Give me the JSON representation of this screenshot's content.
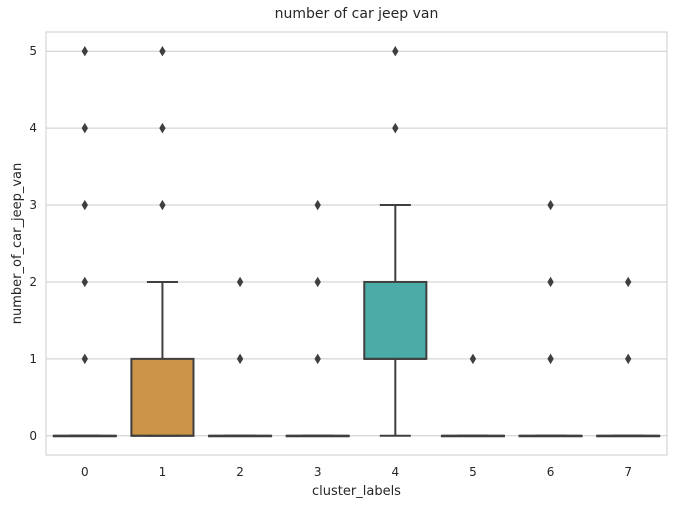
{
  "chart_data": {
    "type": "box",
    "title": "number of car jeep van",
    "xlabel": "cluster_labels",
    "ylabel": "number_of_car_jeep_van",
    "categories": [
      "0",
      "1",
      "2",
      "3",
      "4",
      "5",
      "6",
      "7"
    ],
    "ylim": [
      -0.25,
      5.25
    ],
    "yticks": [
      0,
      1,
      2,
      3,
      4,
      5
    ],
    "grid": "horizontal",
    "boxes": [
      {
        "category": "0",
        "whisker_low": 0,
        "q1": 0,
        "median": 0,
        "q3": 0,
        "whisker_high": 0,
        "outliers": [
          1,
          2,
          3,
          4,
          5
        ],
        "color": "#4c72b0"
      },
      {
        "category": "1",
        "whisker_low": 0,
        "q1": 0,
        "median": 0,
        "q3": 1,
        "whisker_high": 2,
        "outliers": [
          3,
          4,
          5
        ],
        "color": "#cc9447"
      },
      {
        "category": "2",
        "whisker_low": 0,
        "q1": 0,
        "median": 0,
        "q3": 0,
        "whisker_high": 0,
        "outliers": [
          1,
          2
        ],
        "color": "#5f9e6e"
      },
      {
        "category": "3",
        "whisker_low": 0,
        "q1": 0,
        "median": 0,
        "q3": 0,
        "whisker_high": 0,
        "outliers": [
          1,
          2,
          3
        ],
        "color": "#b55d60"
      },
      {
        "category": "4",
        "whisker_low": 0,
        "q1": 1,
        "median": 1,
        "q3": 2,
        "whisker_high": 3,
        "outliers": [
          4,
          5
        ],
        "color": "#4aaba7"
      },
      {
        "category": "5",
        "whisker_low": 0,
        "q1": 0,
        "median": 0,
        "q3": 0,
        "whisker_high": 0,
        "outliers": [
          1
        ],
        "color": "#857aab"
      },
      {
        "category": "6",
        "whisker_low": 0,
        "q1": 0,
        "median": 0,
        "q3": 0,
        "whisker_high": 0,
        "outliers": [
          1,
          2,
          3
        ],
        "color": "#8d7866"
      },
      {
        "category": "7",
        "whisker_low": 0,
        "q1": 0,
        "median": 0,
        "q3": 0,
        "whisker_high": 0,
        "outliers": [
          1,
          2
        ],
        "color": "#d095bf"
      }
    ],
    "colors": {
      "line": "#3f3f3f",
      "grid": "#cccccc",
      "frame": "#cccccc"
    }
  }
}
